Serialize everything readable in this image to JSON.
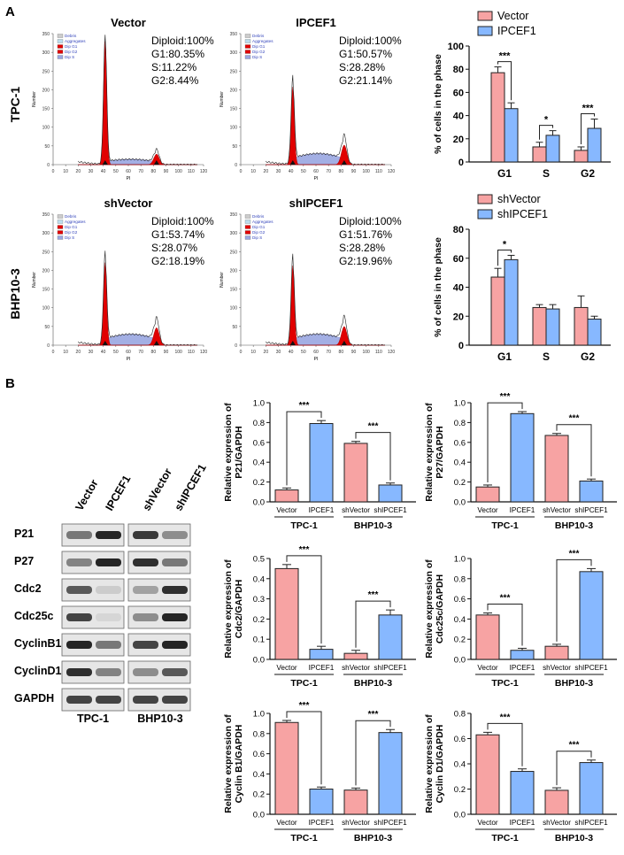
{
  "panels": {
    "a": "A",
    "b": "B"
  },
  "colors": {
    "pink": "#f7a3a3",
    "blue": "#87b8ff",
    "red": "#e10000",
    "hist_blue": "#9aa7e2"
  },
  "flow": {
    "row_labels": [
      "TPC-1",
      "BHP10-3"
    ],
    "legend": [
      "Debris",
      "Aggregates",
      "Dip G1",
      "Dip G2",
      "Dip S"
    ],
    "x_ticks": [
      "0",
      "10",
      "20",
      "30",
      "40",
      "50",
      "60",
      "70",
      "80",
      "90",
      "100",
      "110",
      "120"
    ],
    "y_ticks": [
      "0",
      "50",
      "100",
      "150",
      "200",
      "250",
      "300",
      "350"
    ],
    "y_label": "Number",
    "x_label": "PI",
    "plots": [
      {
        "title": "Vector",
        "lines": [
          "Diploid:100%",
          "G1:80.35%",
          "S:11.22%",
          "G2:8.44%"
        ],
        "g1": 80.35,
        "s": 11.22,
        "g2": 8.44
      },
      {
        "title": "IPCEF1",
        "lines": [
          "Diploid:100%",
          "G1:50.57%",
          "S:28.28%",
          "G2:21.14%"
        ],
        "g1": 50.57,
        "s": 28.28,
        "g2": 21.14
      },
      {
        "title": "shVector",
        "lines": [
          "Diploid:100%",
          "G1:53.74%",
          "S:28.07%",
          "G2:18.19%"
        ],
        "g1": 53.74,
        "s": 28.07,
        "g2": 18.19
      },
      {
        "title": "shIPCEF1",
        "lines": [
          "Diploid:100%",
          "G1:51.76%",
          "S:28.28%",
          "G2:19.96%"
        ],
        "g1": 51.76,
        "s": 28.28,
        "g2": 19.96
      }
    ]
  },
  "western": {
    "lanes": [
      "Vector",
      "IPCEF1",
      "shVector",
      "shIPCEF1"
    ],
    "proteins": [
      "P21",
      "P27",
      "Cdc2",
      "Cdc25c",
      "CyclinB1",
      "CyclinD1",
      "GAPDH"
    ],
    "groups": [
      "TPC-1",
      "BHP10-3"
    ]
  },
  "chart_data": [
    {
      "type": "bar",
      "title": "",
      "ylabel": "% of cells in the phase",
      "categories": [
        "G1",
        "S",
        "G2"
      ],
      "ylim": [
        0,
        100
      ],
      "yticks": [
        "0",
        "20",
        "40",
        "60",
        "80",
        "100"
      ],
      "series": [
        {
          "name": "Vector",
          "values": [
            77,
            13,
            10
          ],
          "errors": [
            5,
            4,
            3
          ]
        },
        {
          "name": "IPCEF1",
          "values": [
            46,
            23,
            29
          ],
          "errors": [
            5,
            4,
            8
          ]
        }
      ],
      "sig": [
        "***",
        "*",
        "***"
      ]
    },
    {
      "type": "bar",
      "title": "",
      "ylabel": "% of cells in the phase",
      "categories": [
        "G1",
        "S",
        "G2"
      ],
      "ylim": [
        0,
        80
      ],
      "yticks": [
        "0",
        "20",
        "40",
        "60",
        "80"
      ],
      "series": [
        {
          "name": "shVector",
          "values": [
            47,
            26,
            26
          ],
          "errors": [
            6,
            2,
            8
          ]
        },
        {
          "name": "shIPCEF1",
          "values": [
            59,
            25,
            18
          ],
          "errors": [
            3,
            3,
            2
          ]
        }
      ],
      "sig": [
        "*",
        "",
        ""
      ]
    },
    {
      "type": "bar",
      "ylabel": [
        "Relative expression of",
        "P21/GAPDH"
      ],
      "ylim": [
        0,
        1.0
      ],
      "yticks": [
        "0.0",
        "0.2",
        "0.4",
        "0.6",
        "0.8",
        "1.0"
      ],
      "categories": [
        "Vector",
        "IPCEF1",
        "shVector",
        "shIPCEF1"
      ],
      "values": [
        0.12,
        0.79,
        0.59,
        0.17
      ],
      "errors": [
        0.02,
        0.03,
        0.02,
        0.02
      ],
      "sig": [
        "***",
        "***"
      ],
      "groups": [
        "TPC-1",
        "BHP10-3"
      ]
    },
    {
      "type": "bar",
      "ylabel": [
        "Relative expression of",
        "P27/GAPDH"
      ],
      "ylim": [
        0,
        1.0
      ],
      "yticks": [
        "0.0",
        "0.2",
        "0.4",
        "0.6",
        "0.8",
        "1.0"
      ],
      "categories": [
        "Vector",
        "IPCEF1",
        "shVector",
        "shIPCEF1"
      ],
      "values": [
        0.15,
        0.89,
        0.67,
        0.21
      ],
      "errors": [
        0.02,
        0.02,
        0.02,
        0.02
      ],
      "sig": [
        "***",
        "***"
      ],
      "groups": [
        "TPC-1",
        "BHP10-3"
      ]
    },
    {
      "type": "bar",
      "ylabel": [
        "Relative expression of",
        "Cdc2/GAPDH"
      ],
      "ylim": [
        0,
        0.5
      ],
      "yticks": [
        "0.0",
        "0.1",
        "0.2",
        "0.3",
        "0.4",
        "0.5"
      ],
      "categories": [
        "Vector",
        "IPCEF1",
        "shVector",
        "shIPCEF1"
      ],
      "values": [
        0.45,
        0.05,
        0.03,
        0.22
      ],
      "errors": [
        0.02,
        0.015,
        0.015,
        0.025
      ],
      "sig": [
        "***",
        "***"
      ],
      "groups": [
        "TPC-1",
        "BHP10-3"
      ]
    },
    {
      "type": "bar",
      "ylabel": [
        "Relative expression of",
        "Cdc25c/GAPDH"
      ],
      "ylim": [
        0,
        1.0
      ],
      "yticks": [
        "0.0",
        "0.2",
        "0.4",
        "0.6",
        "0.8",
        "1.0"
      ],
      "categories": [
        "Vector",
        "IPCEF1",
        "shVector",
        "shIPCEF1"
      ],
      "values": [
        0.44,
        0.09,
        0.13,
        0.87
      ],
      "errors": [
        0.02,
        0.02,
        0.02,
        0.03
      ],
      "sig": [
        "***",
        "***"
      ],
      "groups": [
        "TPC-1",
        "BHP10-3"
      ]
    },
    {
      "type": "bar",
      "ylabel": [
        "Relative expression of",
        "Cyclin B1/GAPDH"
      ],
      "ylim": [
        0,
        1.0
      ],
      "yticks": [
        "0.0",
        "0.2",
        "0.4",
        "0.6",
        "0.8",
        "1.0"
      ],
      "categories": [
        "Vector",
        "IPCEF1",
        "shVector",
        "shIPCEF1"
      ],
      "values": [
        0.91,
        0.25,
        0.24,
        0.81
      ],
      "errors": [
        0.02,
        0.02,
        0.02,
        0.03
      ],
      "sig": [
        "***",
        "***"
      ],
      "groups": [
        "TPC-1",
        "BHP10-3"
      ]
    },
    {
      "type": "bar",
      "ylabel": [
        "Relative expression of",
        "Cyclin D1/GAPDH"
      ],
      "ylim": [
        0,
        0.8
      ],
      "yticks": [
        "0.0",
        "0.2",
        "0.4",
        "0.6",
        "0.8"
      ],
      "categories": [
        "Vector",
        "IPCEF1",
        "shVector",
        "shIPCEF1"
      ],
      "values": [
        0.63,
        0.34,
        0.19,
        0.41
      ],
      "errors": [
        0.02,
        0.02,
        0.02,
        0.02
      ],
      "sig": [
        "***",
        "***"
      ],
      "groups": [
        "TPC-1",
        "BHP10-3"
      ]
    }
  ]
}
